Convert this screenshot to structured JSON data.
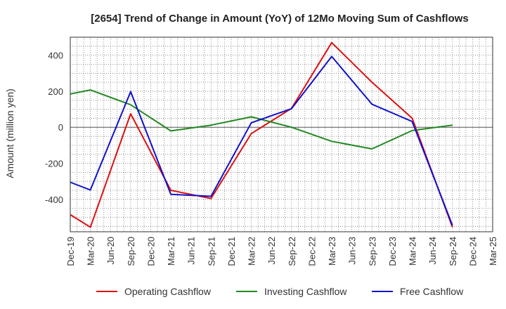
{
  "chart_data": {
    "type": "line",
    "title": "[2654]  Trend of Change in Amount (YoY) of 12Mo Moving Sum of Cashflows",
    "xlabel": "",
    "ylabel": "Amount (million yen)",
    "ylim": [
      -580,
      500
    ],
    "yticks": [
      400,
      200,
      0,
      -200,
      -400
    ],
    "grid": true,
    "legend_position": "bottom",
    "categories": [
      "Dec-19",
      "Mar-20",
      "Jun-20",
      "Sep-20",
      "Dec-20",
      "Mar-21",
      "Jun-21",
      "Sep-21",
      "Dec-21",
      "Mar-22",
      "Jun-22",
      "Sep-22",
      "Dec-22",
      "Mar-23",
      "Jun-23",
      "Sep-23",
      "Dec-23",
      "Mar-24",
      "Jun-24",
      "Sep-24",
      "Dec-24",
      "Mar-25"
    ],
    "series": [
      {
        "name": "Operating Cashflow",
        "color": "#dd1111",
        "values": [
          -485,
          -555,
          null,
          75,
          null,
          -350,
          null,
          -395,
          null,
          -35,
          null,
          105,
          null,
          470,
          null,
          250,
          null,
          50,
          null,
          -555,
          null,
          null
        ]
      },
      {
        "name": "Investing Cashflow",
        "color": "#228822",
        "values": [
          185,
          207,
          null,
          125,
          null,
          -20,
          null,
          12,
          null,
          58,
          null,
          0,
          null,
          -78,
          null,
          -120,
          null,
          -18,
          null,
          12,
          null,
          null
        ]
      },
      {
        "name": "Free Cashflow",
        "color": "#1111cc",
        "values": [
          -305,
          -348,
          null,
          198,
          null,
          -372,
          null,
          -383,
          null,
          25,
          null,
          103,
          null,
          393,
          null,
          128,
          null,
          32,
          null,
          -545,
          null,
          null
        ]
      }
    ]
  }
}
